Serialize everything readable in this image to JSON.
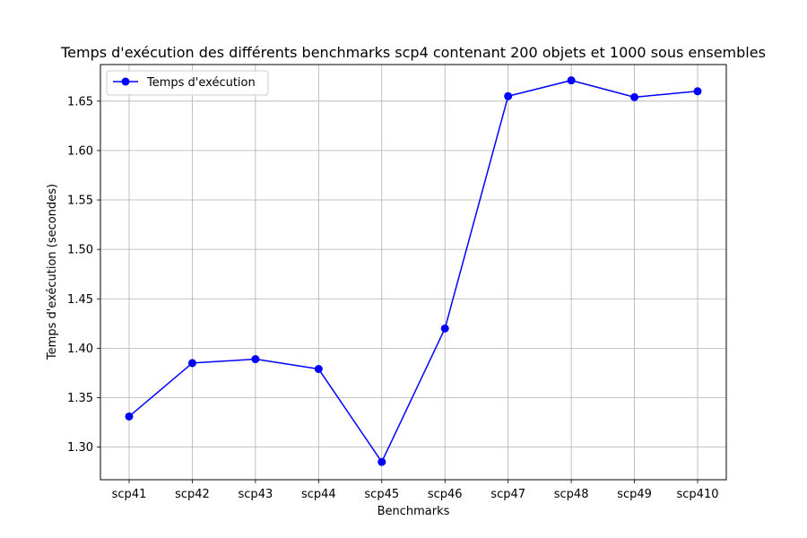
{
  "chart_data": {
    "type": "line",
    "title": "Temps d'exécution des différents benchmarks scp4 contenant 200 objets et 1000 sous ensembles",
    "xlabel": "Benchmarks",
    "ylabel": "Temps d'exécution (secondes)",
    "categories": [
      "scp41",
      "scp42",
      "scp43",
      "scp44",
      "scp45",
      "scp46",
      "scp47",
      "scp48",
      "scp49",
      "scp410"
    ],
    "ylim": [
      1.267,
      1.687
    ],
    "yticks": [
      "1.30",
      "1.35",
      "1.40",
      "1.45",
      "1.50",
      "1.55",
      "1.60",
      "1.65"
    ],
    "grid": true,
    "legend_position": "upper-left",
    "series": [
      {
        "name": "Temps d'exécution",
        "color": "#0000ff",
        "marker": "circle",
        "values": [
          1.331,
          1.385,
          1.389,
          1.379,
          1.285,
          1.42,
          1.655,
          1.671,
          1.654,
          1.66
        ]
      }
    ]
  }
}
